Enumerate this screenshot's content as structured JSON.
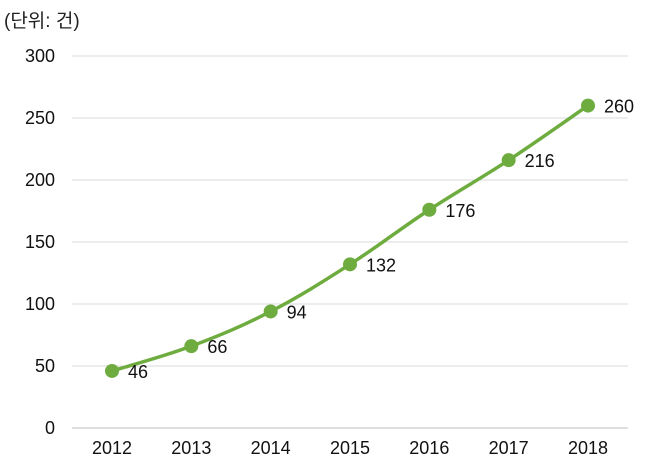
{
  "chart_data": {
    "type": "line",
    "unit_label": "(단위: 건)",
    "title": "",
    "xlabel": "",
    "ylabel": "",
    "categories": [
      "2012",
      "2013",
      "2014",
      "2015",
      "2016",
      "2017",
      "2018"
    ],
    "series": [
      {
        "values": [
          46,
          66,
          94,
          132,
          176,
          216,
          260
        ]
      }
    ],
    "data_labels": [
      "46",
      "66",
      "94",
      "132",
      "176",
      "216",
      "260"
    ],
    "y_ticks": [
      "0",
      "50",
      "100",
      "150",
      "200",
      "250",
      "300"
    ],
    "ylim": [
      0,
      300
    ],
    "grid": true,
    "legend": "none",
    "colors": {
      "series": "#6fac3f",
      "grid": "#d9d9d9"
    }
  }
}
